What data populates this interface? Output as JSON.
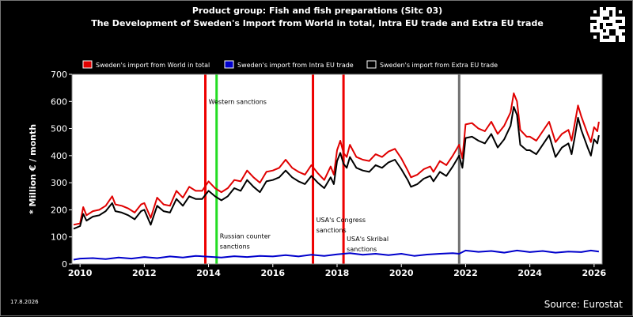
{
  "header": {
    "title": "Product group: Fish and fish preparations (Sitc 03)",
    "subtitle": "The Development of Sweden's Import from World in total, Intra EU trade and Extra EU trade"
  },
  "footer": {
    "date": "17.8.2026",
    "source": "Source: Eurostat"
  },
  "colors": {
    "background": "#000000",
    "plot_background": "#ffffff",
    "world": "#e00000",
    "intra": "#0000cc",
    "extra": "#000000",
    "sanction_red": "#ee0000",
    "sanction_green": "#22dd22",
    "sanction_gray": "#707070"
  },
  "chart_data": {
    "type": "line",
    "title": "Product group: Fish and fish preparations (Sitc 03)",
    "subtitle": "The Development of Sweden's Import from World in total, Intra EU trade and Extra EU trade",
    "ylabel": "* Million € / month",
    "xlabel": "",
    "xlim": [
      2009.75,
      2026.25
    ],
    "ylim": [
      0,
      700
    ],
    "yticks": [
      0,
      100,
      200,
      300,
      400,
      500,
      600,
      700
    ],
    "xticks": [
      "2010",
      "2012",
      "2014",
      "2016",
      "2018",
      "2020",
      "2022",
      "2024",
      "2026"
    ],
    "grid": false,
    "legend_position": "top",
    "series": [
      {
        "name": "Sweden's import from World in total",
        "color": "#e00000",
        "points": [
          [
            2009.8,
            145
          ],
          [
            2010.0,
            150
          ],
          [
            2010.1,
            210
          ],
          [
            2010.2,
            180
          ],
          [
            2010.4,
            195
          ],
          [
            2010.6,
            200
          ],
          [
            2010.8,
            215
          ],
          [
            2011.0,
            250
          ],
          [
            2011.1,
            220
          ],
          [
            2011.3,
            215
          ],
          [
            2011.5,
            205
          ],
          [
            2011.7,
            190
          ],
          [
            2011.9,
            220
          ],
          [
            2012.0,
            225
          ],
          [
            2012.2,
            170
          ],
          [
            2012.4,
            245
          ],
          [
            2012.6,
            220
          ],
          [
            2012.8,
            215
          ],
          [
            2013.0,
            270
          ],
          [
            2013.2,
            245
          ],
          [
            2013.4,
            285
          ],
          [
            2013.6,
            270
          ],
          [
            2013.8,
            270
          ],
          [
            2014.0,
            305
          ],
          [
            2014.2,
            280
          ],
          [
            2014.4,
            265
          ],
          [
            2014.6,
            280
          ],
          [
            2014.8,
            310
          ],
          [
            2015.0,
            305
          ],
          [
            2015.2,
            345
          ],
          [
            2015.4,
            320
          ],
          [
            2015.6,
            300
          ],
          [
            2015.8,
            340
          ],
          [
            2016.0,
            345
          ],
          [
            2016.2,
            355
          ],
          [
            2016.4,
            385
          ],
          [
            2016.6,
            355
          ],
          [
            2016.8,
            340
          ],
          [
            2017.0,
            330
          ],
          [
            2017.2,
            365
          ],
          [
            2017.4,
            335
          ],
          [
            2017.6,
            310
          ],
          [
            2017.8,
            360
          ],
          [
            2017.9,
            330
          ],
          [
            2018.0,
            420
          ],
          [
            2018.1,
            455
          ],
          [
            2018.2,
            410
          ],
          [
            2018.3,
            395
          ],
          [
            2018.4,
            440
          ],
          [
            2018.6,
            395
          ],
          [
            2018.8,
            385
          ],
          [
            2019.0,
            380
          ],
          [
            2019.2,
            405
          ],
          [
            2019.4,
            395
          ],
          [
            2019.6,
            415
          ],
          [
            2019.8,
            425
          ],
          [
            2020.0,
            390
          ],
          [
            2020.2,
            345
          ],
          [
            2020.3,
            320
          ],
          [
            2020.5,
            330
          ],
          [
            2020.7,
            350
          ],
          [
            2020.9,
            360
          ],
          [
            2021.0,
            340
          ],
          [
            2021.2,
            380
          ],
          [
            2021.4,
            365
          ],
          [
            2021.6,
            400
          ],
          [
            2021.8,
            440
          ],
          [
            2021.9,
            390
          ],
          [
            2022.0,
            515
          ],
          [
            2022.2,
            520
          ],
          [
            2022.4,
            500
          ],
          [
            2022.6,
            490
          ],
          [
            2022.8,
            525
          ],
          [
            2023.0,
            480
          ],
          [
            2023.2,
            510
          ],
          [
            2023.4,
            560
          ],
          [
            2023.5,
            630
          ],
          [
            2023.6,
            600
          ],
          [
            2023.7,
            495
          ],
          [
            2023.9,
            470
          ],
          [
            2024.0,
            470
          ],
          [
            2024.2,
            455
          ],
          [
            2024.4,
            490
          ],
          [
            2024.6,
            525
          ],
          [
            2024.8,
            450
          ],
          [
            2025.0,
            480
          ],
          [
            2025.2,
            495
          ],
          [
            2025.3,
            455
          ],
          [
            2025.4,
            520
          ],
          [
            2025.5,
            585
          ],
          [
            2025.6,
            545
          ],
          [
            2025.8,
            480
          ],
          [
            2025.9,
            450
          ],
          [
            2026.0,
            505
          ],
          [
            2026.1,
            490
          ],
          [
            2026.15,
            525
          ]
        ]
      },
      {
        "name": "Sweden's import from Intra EU trade",
        "color": "#0000cc",
        "points": [
          [
            2009.8,
            16
          ],
          [
            2010.0,
            20
          ],
          [
            2010.4,
            22
          ],
          [
            2010.8,
            18
          ],
          [
            2011.2,
            24
          ],
          [
            2011.6,
            20
          ],
          [
            2012.0,
            26
          ],
          [
            2012.4,
            22
          ],
          [
            2012.8,
            28
          ],
          [
            2013.2,
            24
          ],
          [
            2013.6,
            30
          ],
          [
            2014.0,
            27
          ],
          [
            2014.4,
            24
          ],
          [
            2014.8,
            29
          ],
          [
            2015.2,
            26
          ],
          [
            2015.6,
            30
          ],
          [
            2016.0,
            28
          ],
          [
            2016.4,
            33
          ],
          [
            2016.8,
            28
          ],
          [
            2017.2,
            34
          ],
          [
            2017.6,
            30
          ],
          [
            2018.0,
            36
          ],
          [
            2018.4,
            40
          ],
          [
            2018.8,
            34
          ],
          [
            2019.2,
            38
          ],
          [
            2019.6,
            33
          ],
          [
            2020.0,
            38
          ],
          [
            2020.4,
            30
          ],
          [
            2020.8,
            35
          ],
          [
            2021.2,
            38
          ],
          [
            2021.6,
            40
          ],
          [
            2021.8,
            38
          ],
          [
            2022.0,
            50
          ],
          [
            2022.4,
            45
          ],
          [
            2022.8,
            48
          ],
          [
            2023.2,
            42
          ],
          [
            2023.6,
            50
          ],
          [
            2024.0,
            44
          ],
          [
            2024.4,
            48
          ],
          [
            2024.8,
            42
          ],
          [
            2025.2,
            46
          ],
          [
            2025.6,
            44
          ],
          [
            2025.9,
            50
          ],
          [
            2026.15,
            46
          ]
        ]
      },
      {
        "name": "Sweden's import from Extra EU trade",
        "color": "#000000",
        "points": [
          [
            2009.8,
            130
          ],
          [
            2010.0,
            140
          ],
          [
            2010.1,
            185
          ],
          [
            2010.2,
            160
          ],
          [
            2010.4,
            175
          ],
          [
            2010.6,
            180
          ],
          [
            2010.8,
            195
          ],
          [
            2011.0,
            225
          ],
          [
            2011.1,
            195
          ],
          [
            2011.3,
            190
          ],
          [
            2011.5,
            180
          ],
          [
            2011.7,
            165
          ],
          [
            2011.9,
            195
          ],
          [
            2012.0,
            200
          ],
          [
            2012.2,
            145
          ],
          [
            2012.4,
            215
          ],
          [
            2012.6,
            195
          ],
          [
            2012.8,
            190
          ],
          [
            2013.0,
            240
          ],
          [
            2013.2,
            215
          ],
          [
            2013.4,
            250
          ],
          [
            2013.6,
            240
          ],
          [
            2013.8,
            240
          ],
          [
            2014.0,
            270
          ],
          [
            2014.2,
            250
          ],
          [
            2014.4,
            235
          ],
          [
            2014.6,
            250
          ],
          [
            2014.8,
            280
          ],
          [
            2015.0,
            270
          ],
          [
            2015.2,
            310
          ],
          [
            2015.4,
            285
          ],
          [
            2015.6,
            265
          ],
          [
            2015.8,
            305
          ],
          [
            2016.0,
            310
          ],
          [
            2016.2,
            320
          ],
          [
            2016.4,
            345
          ],
          [
            2016.6,
            320
          ],
          [
            2016.8,
            305
          ],
          [
            2017.0,
            295
          ],
          [
            2017.2,
            325
          ],
          [
            2017.4,
            300
          ],
          [
            2017.6,
            280
          ],
          [
            2017.8,
            320
          ],
          [
            2017.9,
            295
          ],
          [
            2018.0,
            380
          ],
          [
            2018.1,
            410
          ],
          [
            2018.2,
            370
          ],
          [
            2018.3,
            355
          ],
          [
            2018.4,
            395
          ],
          [
            2018.6,
            355
          ],
          [
            2018.8,
            345
          ],
          [
            2019.0,
            340
          ],
          [
            2019.2,
            365
          ],
          [
            2019.4,
            355
          ],
          [
            2019.6,
            375
          ],
          [
            2019.8,
            385
          ],
          [
            2020.0,
            350
          ],
          [
            2020.2,
            310
          ],
          [
            2020.3,
            285
          ],
          [
            2020.5,
            295
          ],
          [
            2020.7,
            315
          ],
          [
            2020.9,
            325
          ],
          [
            2021.0,
            305
          ],
          [
            2021.2,
            340
          ],
          [
            2021.4,
            325
          ],
          [
            2021.6,
            360
          ],
          [
            2021.8,
            400
          ],
          [
            2021.9,
            355
          ],
          [
            2022.0,
            465
          ],
          [
            2022.2,
            470
          ],
          [
            2022.4,
            455
          ],
          [
            2022.6,
            445
          ],
          [
            2022.8,
            480
          ],
          [
            2023.0,
            430
          ],
          [
            2023.2,
            460
          ],
          [
            2023.4,
            510
          ],
          [
            2023.5,
            580
          ],
          [
            2023.6,
            550
          ],
          [
            2023.7,
            440
          ],
          [
            2023.9,
            420
          ],
          [
            2024.0,
            420
          ],
          [
            2024.2,
            405
          ],
          [
            2024.4,
            440
          ],
          [
            2024.6,
            475
          ],
          [
            2024.8,
            395
          ],
          [
            2025.0,
            430
          ],
          [
            2025.2,
            445
          ],
          [
            2025.3,
            405
          ],
          [
            2025.4,
            470
          ],
          [
            2025.5,
            540
          ],
          [
            2025.6,
            495
          ],
          [
            2025.8,
            430
          ],
          [
            2025.9,
            400
          ],
          [
            2026.0,
            460
          ],
          [
            2026.1,
            445
          ],
          [
            2026.15,
            475
          ]
        ]
      }
    ],
    "events": [
      {
        "x": 2013.9,
        "color": "#ee0000",
        "label": "",
        "label_y": 0
      },
      {
        "x": 2014.25,
        "color": "#22dd22",
        "label": "",
        "label_y": 0
      },
      {
        "x": 2017.25,
        "color": "#ee0000",
        "label": "",
        "label_y": 0
      },
      {
        "x": 2018.2,
        "color": "#ee0000",
        "label": "",
        "label_y": 0
      },
      {
        "x": 2021.8,
        "color": "#707070",
        "label": "",
        "label_y": 0
      }
    ],
    "annotations": [
      {
        "text": "Western sanctions",
        "x": 2014.0,
        "y": 590
      },
      {
        "text": "Russian counter",
        "x": 2014.35,
        "y": 95
      },
      {
        "text": "sanctions",
        "x": 2014.35,
        "y": 57
      },
      {
        "text": "USA's Congress",
        "x": 2017.35,
        "y": 155
      },
      {
        "text": "sanctions",
        "x": 2017.35,
        "y": 117
      },
      {
        "text": "USA's Skribal",
        "x": 2018.3,
        "y": 85
      },
      {
        "text": "sanctions",
        "x": 2018.3,
        "y": 47
      }
    ]
  }
}
